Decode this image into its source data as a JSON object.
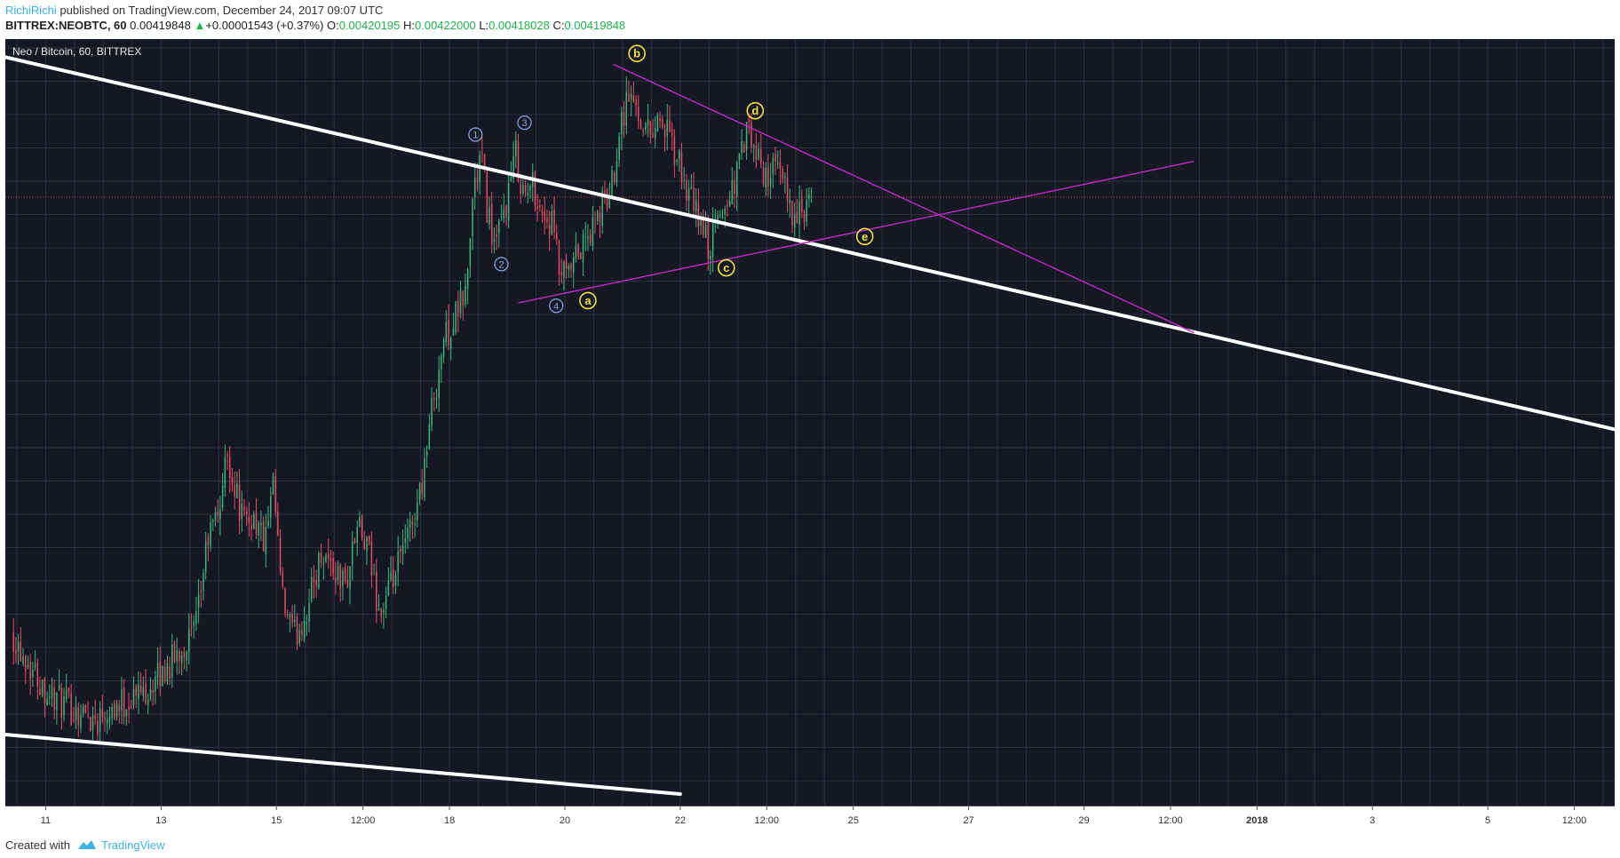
{
  "header": {
    "author": "RichiRichi",
    "published_text": "published on TradingView.com, December 24, 2017 09:07 UTC"
  },
  "ohlc": {
    "symbol": "BITTREX:NEOBTC, 60",
    "last": "0.00419848",
    "change": "+0.00001543 (+0.37%)",
    "o_label": "O:",
    "o_value": "0.00420195",
    "h_label": "H:",
    "h_value": "0.00422000",
    "l_label": "L:",
    "l_value": "0.00418028",
    "c_label": "C:",
    "c_value": "0.00419848"
  },
  "chart_title": "Neo / Bitcoin, 60, BITTREX",
  "footer": {
    "created_with": "Created with",
    "brand": "TradingView"
  },
  "colors": {
    "background": "#141823",
    "grid": "#2b3040",
    "up": "#3bb57a",
    "down": "#ea4a64",
    "trendline": "#ffffff",
    "triangle": "#c42ac8",
    "wave_yellow": "#f1e23d",
    "wave_blue": "#8aa9e6",
    "price_line": "#e0474c"
  },
  "chart_data": {
    "type": "candlestick",
    "x_ticks": [
      "11",
      "13",
      "15",
      "12:00",
      "18",
      "20",
      "22",
      "12:00",
      "25",
      "27",
      "29",
      "12:00",
      "2018",
      "3",
      "5",
      "12:00"
    ],
    "x_tick_days": [
      11,
      13,
      15,
      16.5,
      18,
      20,
      22,
      23.5,
      25,
      27,
      29,
      30.5,
      32,
      34,
      36,
      37.5
    ],
    "x_range_days": [
      10.3,
      38.2
    ],
    "y_range": [
      0,
      100
    ],
    "y_axis_labels": "not shown",
    "current_price": 0.00419848,
    "price_line_level": 80.2,
    "close_path": [
      [
        10.4,
        22
      ],
      [
        10.6,
        19
      ],
      [
        11.0,
        14
      ],
      [
        11.3,
        12
      ],
      [
        11.6,
        11
      ],
      [
        11.9,
        10
      ],
      [
        12.0,
        11.5
      ],
      [
        12.3,
        12
      ],
      [
        12.6,
        13.5
      ],
      [
        12.9,
        15
      ],
      [
        13.2,
        18
      ],
      [
        13.4,
        20
      ],
      [
        13.6,
        22
      ],
      [
        13.8,
        34
      ],
      [
        14.0,
        38
      ],
      [
        14.15,
        46
      ],
      [
        14.25,
        42
      ],
      [
        14.45,
        36
      ],
      [
        14.6,
        37.5
      ],
      [
        14.8,
        33.5
      ],
      [
        14.95,
        41
      ],
      [
        15.1,
        26
      ],
      [
        15.3,
        21
      ],
      [
        15.5,
        24
      ],
      [
        15.8,
        33
      ],
      [
        16.0,
        30
      ],
      [
        16.2,
        28
      ],
      [
        16.4,
        36
      ],
      [
        16.6,
        32
      ],
      [
        16.8,
        24
      ],
      [
        17.0,
        28
      ],
      [
        17.3,
        35
      ],
      [
        17.5,
        41
      ],
      [
        17.7,
        52
      ],
      [
        17.9,
        61
      ],
      [
        18.1,
        64
      ],
      [
        18.3,
        68
      ],
      [
        18.4,
        80
      ],
      [
        18.55,
        86
      ],
      [
        18.65,
        79
      ],
      [
        18.8,
        73
      ],
      [
        19.0,
        80
      ],
      [
        19.15,
        86
      ],
      [
        19.3,
        80
      ],
      [
        19.45,
        82
      ],
      [
        19.6,
        78
      ],
      [
        19.8,
        76
      ],
      [
        19.9,
        70
      ],
      [
        20.05,
        69
      ],
      [
        20.2,
        72
      ],
      [
        20.5,
        76
      ],
      [
        20.65,
        79
      ],
      [
        20.8,
        81
      ],
      [
        20.95,
        90
      ],
      [
        21.1,
        94
      ],
      [
        21.25,
        92
      ],
      [
        21.45,
        89
      ],
      [
        21.65,
        91
      ],
      [
        21.85,
        87
      ],
      [
        22.0,
        84
      ],
      [
        22.15,
        80
      ],
      [
        22.35,
        77
      ],
      [
        22.5,
        73
      ],
      [
        22.65,
        77
      ],
      [
        22.85,
        80
      ],
      [
        23.0,
        84
      ],
      [
        23.15,
        89
      ],
      [
        23.3,
        86
      ],
      [
        23.45,
        83
      ],
      [
        23.6,
        84
      ],
      [
        23.8,
        82
      ],
      [
        24.0,
        77
      ],
      [
        24.15,
        78
      ],
      [
        24.3,
        80
      ]
    ],
    "trendlines": [
      {
        "name": "upper-channel",
        "from": [
          10.3,
          99.0
        ],
        "to": [
          38.2,
          49.0
        ]
      },
      {
        "name": "lower-channel",
        "from": [
          10.3,
          8.0
        ],
        "to": [
          22.0,
          0.0
        ]
      },
      {
        "name": "triangle-top",
        "from": [
          20.85,
          98.0
        ],
        "to": [
          30.9,
          62.0
        ]
      },
      {
        "name": "triangle-bottom",
        "from": [
          19.2,
          66.0
        ],
        "to": [
          30.9,
          85.0
        ]
      }
    ],
    "wave_labels": [
      {
        "text": "a",
        "style": "yellow",
        "x": 20.4,
        "y": 66.3
      },
      {
        "text": "b",
        "style": "yellow",
        "x": 21.25,
        "y": 99.5
      },
      {
        "text": "c",
        "style": "yellow",
        "x": 22.8,
        "y": 70.7
      },
      {
        "text": "d",
        "style": "yellow",
        "x": 23.3,
        "y": 91.8
      },
      {
        "text": "e",
        "style": "yellow",
        "x": 25.2,
        "y": 74.9
      },
      {
        "text": "1",
        "style": "blue",
        "x": 18.45,
        "y": 88.6
      },
      {
        "text": "2",
        "style": "blue",
        "x": 18.9,
        "y": 71.2
      },
      {
        "text": "3",
        "style": "blue",
        "x": 19.3,
        "y": 90.2
      },
      {
        "text": "4",
        "style": "blue",
        "x": 19.85,
        "y": 65.6
      }
    ]
  }
}
